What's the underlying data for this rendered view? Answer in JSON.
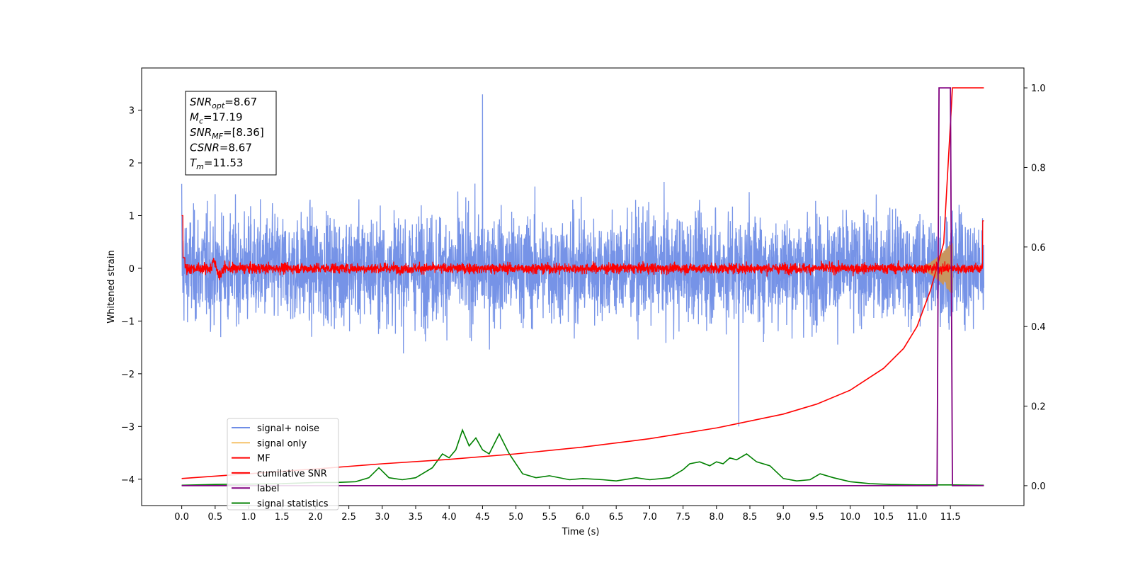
{
  "chart_data": {
    "type": "line",
    "xlabel": "Time (s)",
    "ylabel_left": "Whitened strain",
    "ylabel_right": "",
    "xlim": [
      -0.6,
      12.6
    ],
    "ylim_left": [
      -4.5,
      3.8
    ],
    "ylim_right": [
      -0.05,
      1.05
    ],
    "x_ticks": [
      "0.0",
      "0.5",
      "1.0",
      "1.5",
      "2.0",
      "2.5",
      "3.0",
      "3.5",
      "4.0",
      "4.5",
      "5.0",
      "5.5",
      "6.0",
      "6.5",
      "7.0",
      "7.5",
      "8.0",
      "8.5",
      "9.0",
      "9.5",
      "10.0",
      "10.5",
      "11.0",
      "11.5"
    ],
    "y_ticks_left": [
      "−4",
      "−3",
      "−2",
      "−1",
      "0",
      "1",
      "2",
      "3"
    ],
    "y_ticks_right": [
      "0.0",
      "0.2",
      "0.4",
      "0.6",
      "0.8",
      "1.0"
    ],
    "grid": false,
    "legend_position": "lower-left",
    "info_box": [
      {
        "label": "SNR",
        "sub": "opt",
        "value": "=8.67"
      },
      {
        "label": "M",
        "sub": "c",
        "value": "=17.19"
      },
      {
        "label": "SNR",
        "sub": "MF",
        "value": "=[8.36]"
      },
      {
        "label": "CSNR",
        "sub": "",
        "value": "=8.67"
      },
      {
        "label": "T",
        "sub": "m",
        "value": "=11.53"
      }
    ],
    "series": [
      {
        "name": "signal+ noise",
        "axis": "left",
        "color": "#6f8de6",
        "description_kind": "noise",
        "x_range": [
          0.0,
          12.0
        ],
        "typical_peak_abs": 2.2,
        "max": 3.3,
        "min": -3.1
      },
      {
        "name": "signal only",
        "axis": "left",
        "color": "#f5c36a",
        "description_kind": "chirp",
        "x_range": [
          11.0,
          11.53
        ],
        "peak_amplitude": 0.5
      },
      {
        "name": "MF",
        "axis": "left",
        "color": "#ff0000",
        "description_kind": "noise",
        "x_range": [
          0.0,
          12.0
        ],
        "typical_peak_abs": 0.2,
        "start_value": 1.0,
        "end_value": 0.9
      },
      {
        "name": "cumilative SNR",
        "axis": "right",
        "color": "#ff0000",
        "x": [
          0.0,
          1.0,
          2.0,
          3.0,
          4.0,
          5.0,
          6.0,
          7.0,
          8.0,
          9.0,
          9.5,
          10.0,
          10.5,
          10.8,
          11.0,
          11.2,
          11.3,
          11.4,
          11.53,
          11.6,
          12.0
        ],
        "values": [
          0.018,
          0.03,
          0.042,
          0.055,
          0.066,
          0.08,
          0.097,
          0.118,
          0.145,
          0.18,
          0.205,
          0.24,
          0.295,
          0.345,
          0.4,
          0.49,
          0.55,
          0.61,
          1.0,
          1.0,
          1.0
        ]
      },
      {
        "name": "label",
        "axis": "right",
        "color": "#800080",
        "x": [
          0.0,
          11.3,
          11.33,
          11.5,
          11.53,
          11.56,
          12.0
        ],
        "values": [
          0.0,
          0.0,
          1.0,
          1.0,
          0.0,
          0.0,
          0.0
        ]
      },
      {
        "name": "signal statistics",
        "axis": "right",
        "color": "#008000",
        "x": [
          0.0,
          0.5,
          1.0,
          1.5,
          2.0,
          2.3,
          2.6,
          2.8,
          2.95,
          3.1,
          3.3,
          3.5,
          3.6,
          3.75,
          3.9,
          4.0,
          4.1,
          4.2,
          4.3,
          4.4,
          4.5,
          4.6,
          4.75,
          4.9,
          5.1,
          5.3,
          5.5,
          5.8,
          6.0,
          6.3,
          6.5,
          6.8,
          7.0,
          7.3,
          7.5,
          7.6,
          7.75,
          7.9,
          8.0,
          8.1,
          8.2,
          8.3,
          8.45,
          8.6,
          8.8,
          9.0,
          9.2,
          9.4,
          9.55,
          9.75,
          10.0,
          10.3,
          10.6,
          11.0,
          11.5,
          12.0
        ],
        "values": [
          0.001,
          0.003,
          0.004,
          0.005,
          0.008,
          0.008,
          0.01,
          0.02,
          0.045,
          0.02,
          0.015,
          0.02,
          0.03,
          0.045,
          0.08,
          0.07,
          0.09,
          0.14,
          0.1,
          0.12,
          0.09,
          0.08,
          0.13,
          0.08,
          0.03,
          0.02,
          0.025,
          0.015,
          0.018,
          0.015,
          0.012,
          0.02,
          0.015,
          0.02,
          0.04,
          0.055,
          0.06,
          0.05,
          0.06,
          0.055,
          0.07,
          0.065,
          0.08,
          0.06,
          0.05,
          0.018,
          0.012,
          0.015,
          0.03,
          0.02,
          0.01,
          0.005,
          0.003,
          0.002,
          0.002,
          0.001
        ]
      }
    ]
  }
}
